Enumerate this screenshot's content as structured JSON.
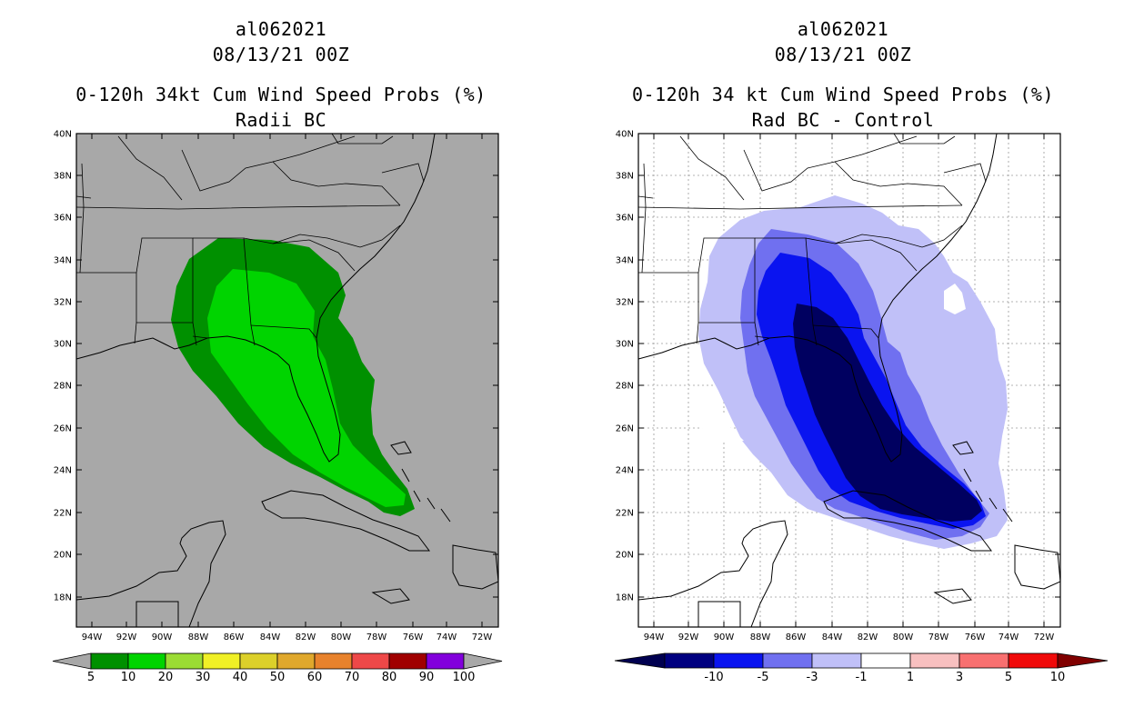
{
  "left": {
    "storm_id": "al062021",
    "datetime": "08/13/21 00Z",
    "title": "0-120h 34kt Cum Wind Speed Probs (%)",
    "subtitle": "Radii BC",
    "colorbar": {
      "labels": [
        "5",
        "10",
        "20",
        "30",
        "40",
        "50",
        "60",
        "70",
        "80",
        "90",
        "100"
      ],
      "colors": [
        "#009000",
        "#00d400",
        "#9bdc34",
        "#f0f026",
        "#dcd02a",
        "#e0a82c",
        "#e8822c",
        "#ee4848",
        "#a00000",
        "#8200dc"
      ],
      "end_color": "#a8a8a8"
    },
    "colors": {
      "background": "#a8a8a8",
      "outer": "#009000",
      "inner": "#00d400"
    }
  },
  "right": {
    "storm_id": "al062021",
    "datetime": "08/13/21 00Z",
    "title": "0-120h 34 kt Cum Wind Speed Probs (%)",
    "subtitle": "Rad BC - Control",
    "colorbar": {
      "labels": [
        "-10",
        "-5",
        "-3",
        "-1",
        "1",
        "3",
        "5",
        "10"
      ],
      "colors": [
        "#000080",
        "#0a14f0",
        "#7070f0",
        "#c0c0f8",
        "#ffffff",
        "#f8c0c0",
        "#f87070",
        "#f00a0a"
      ],
      "end_left": "#000050",
      "end_right": "#800000"
    },
    "colors": {
      "background": "#ffffff",
      "c1": "#c0c0f8",
      "c2": "#7070f0",
      "c3": "#0a14f0",
      "c4": "#000060"
    }
  },
  "axes": {
    "lat_labels": [
      "40N",
      "38N",
      "36N",
      "34N",
      "32N",
      "30N",
      "28N",
      "26N",
      "24N",
      "22N",
      "20N",
      "18N"
    ],
    "lon_labels": [
      "94W",
      "92W",
      "90W",
      "88W",
      "86W",
      "84W",
      "82W",
      "80W",
      "78W",
      "76W",
      "74W",
      "72W"
    ]
  }
}
